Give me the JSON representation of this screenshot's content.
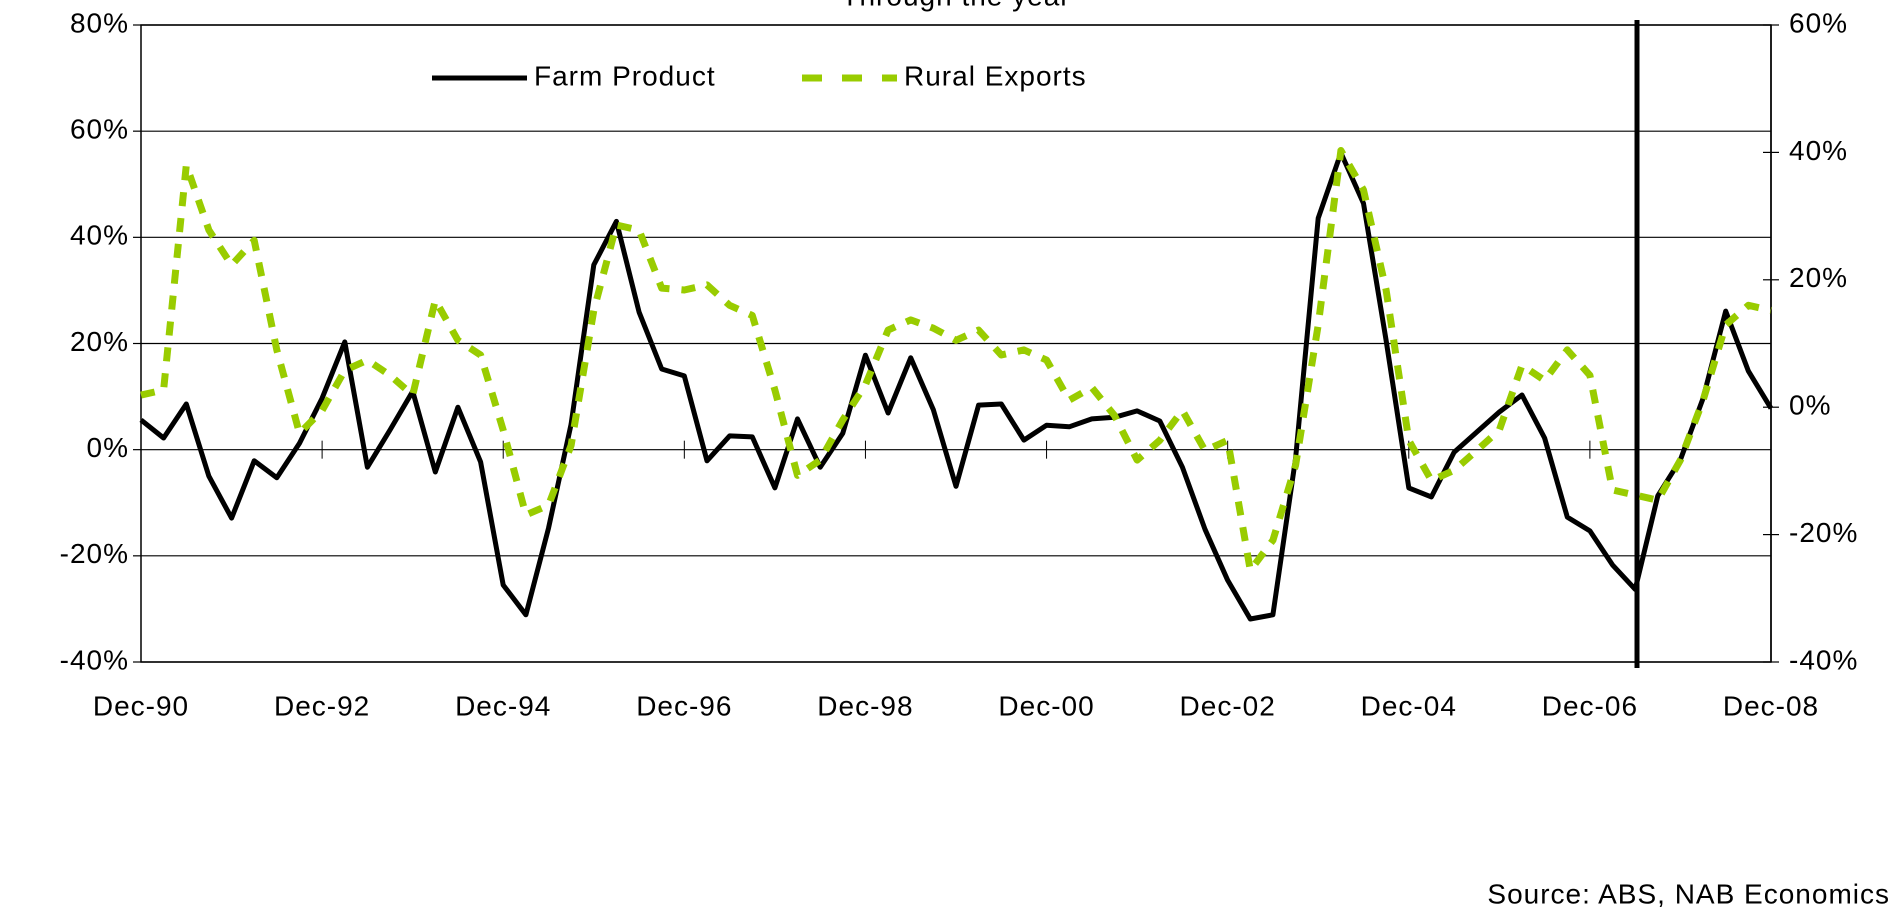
{
  "chart_data": {
    "type": "line",
    "title": "Through the year",
    "source": "Source: ABS, NAB Economics",
    "categories": [
      "Dec-90",
      null,
      null,
      null,
      null,
      null,
      null,
      null,
      "Dec-92",
      null,
      null,
      null,
      null,
      null,
      null,
      null,
      "Dec-94",
      null,
      null,
      null,
      null,
      null,
      null,
      null,
      "Dec-96",
      null,
      null,
      null,
      null,
      null,
      null,
      null,
      "Dec-98",
      null,
      null,
      null,
      null,
      null,
      null,
      null,
      "Dec-00",
      null,
      null,
      null,
      null,
      null,
      null,
      null,
      "Dec-02",
      null,
      null,
      null,
      null,
      null,
      null,
      null,
      "Dec-04",
      null,
      null,
      null,
      null,
      null,
      null,
      null,
      "Dec-06",
      null,
      null,
      null,
      null,
      null,
      null,
      null,
      "Dec-08"
    ],
    "series": [
      {
        "name": "Farm Product",
        "color": "#000000",
        "axis": "y",
        "values": [
          5.6,
          2.2,
          8.6,
          -5,
          -12.9,
          -2.1,
          -5.3,
          1.2,
          9.7,
          20.3,
          -3.3,
          3.7,
          11,
          -4.2,
          8,
          -2.3,
          -25.5,
          -31.1,
          -14.8,
          4.8,
          34.8,
          43,
          25.9,
          15.2,
          13.9,
          -2.1,
          2.6,
          2.4,
          -7.2,
          5.8,
          -3.3,
          3.1,
          17.8,
          6.9,
          17.3,
          7.5,
          -6.9,
          8.4,
          8.6,
          1.8,
          4.6,
          4.3,
          5.8,
          6.1,
          7.3,
          5.4,
          -3.3,
          -15,
          -24.6,
          -31.9,
          -31.1,
          -1.6,
          43.6,
          55.9,
          46.4,
          20.6,
          -7.2,
          -8.9,
          -0.5,
          3.3,
          7.1,
          10.3,
          2.2,
          -12.7,
          -15.3,
          -21.7,
          -26.3,
          -8.7,
          -1.9,
          9.7,
          26.1,
          14.8,
          7.8
        ]
      },
      {
        "name": "Rural Exports",
        "color": "#99cc00",
        "axis": "y2",
        "values": [
          1.9,
          2.7,
          38,
          27.8,
          22.3,
          26.2,
          9,
          -4.1,
          -0.5,
          5.8,
          7.4,
          5,
          1.9,
          16.8,
          10.5,
          8.2,
          -3.6,
          -16.9,
          -15.4,
          -6,
          15.2,
          28.6,
          27.8,
          18.7,
          18.4,
          19.2,
          16,
          14.4,
          2.7,
          -10.7,
          -8.3,
          -2,
          3.5,
          12.1,
          13.7,
          12.4,
          10.5,
          12.1,
          8.2,
          9,
          7.4,
          1.1,
          3.1,
          -1.3,
          -8.3,
          -5.2,
          -0.5,
          -6.8,
          -5.2,
          -25.6,
          -20.9,
          -9.1,
          12.9,
          40.3,
          34.1,
          18.4,
          -5.2,
          -11.5,
          -9.9,
          -6.8,
          -3.6,
          6.6,
          4.2,
          9,
          5,
          -13,
          -13.8,
          -14.6,
          -8.3,
          1.1,
          12.9,
          16,
          15.2
        ]
      }
    ],
    "ylim": [
      -40,
      80
    ],
    "yticks": [
      {
        "value": -40,
        "label": "-40%"
      },
      {
        "value": -20,
        "label": "-20%"
      },
      {
        "value": 0,
        "label": "0%"
      },
      {
        "value": 20,
        "label": "20%"
      },
      {
        "value": 40,
        "label": "40%"
      },
      {
        "value": 60,
        "label": "60%"
      },
      {
        "value": 80,
        "label": "80%"
      }
    ],
    "y2lim": [
      -40,
      60
    ],
    "y2ticks": [
      {
        "value": -40,
        "label": "-40%"
      },
      {
        "value": -20,
        "label": "-20%"
      },
      {
        "value": 0,
        "label": "0%"
      },
      {
        "value": 20,
        "label": "20%"
      },
      {
        "value": 40,
        "label": "40%"
      },
      {
        "value": 60,
        "label": "60%"
      }
    ],
    "grid": true,
    "legend": "top"
  }
}
